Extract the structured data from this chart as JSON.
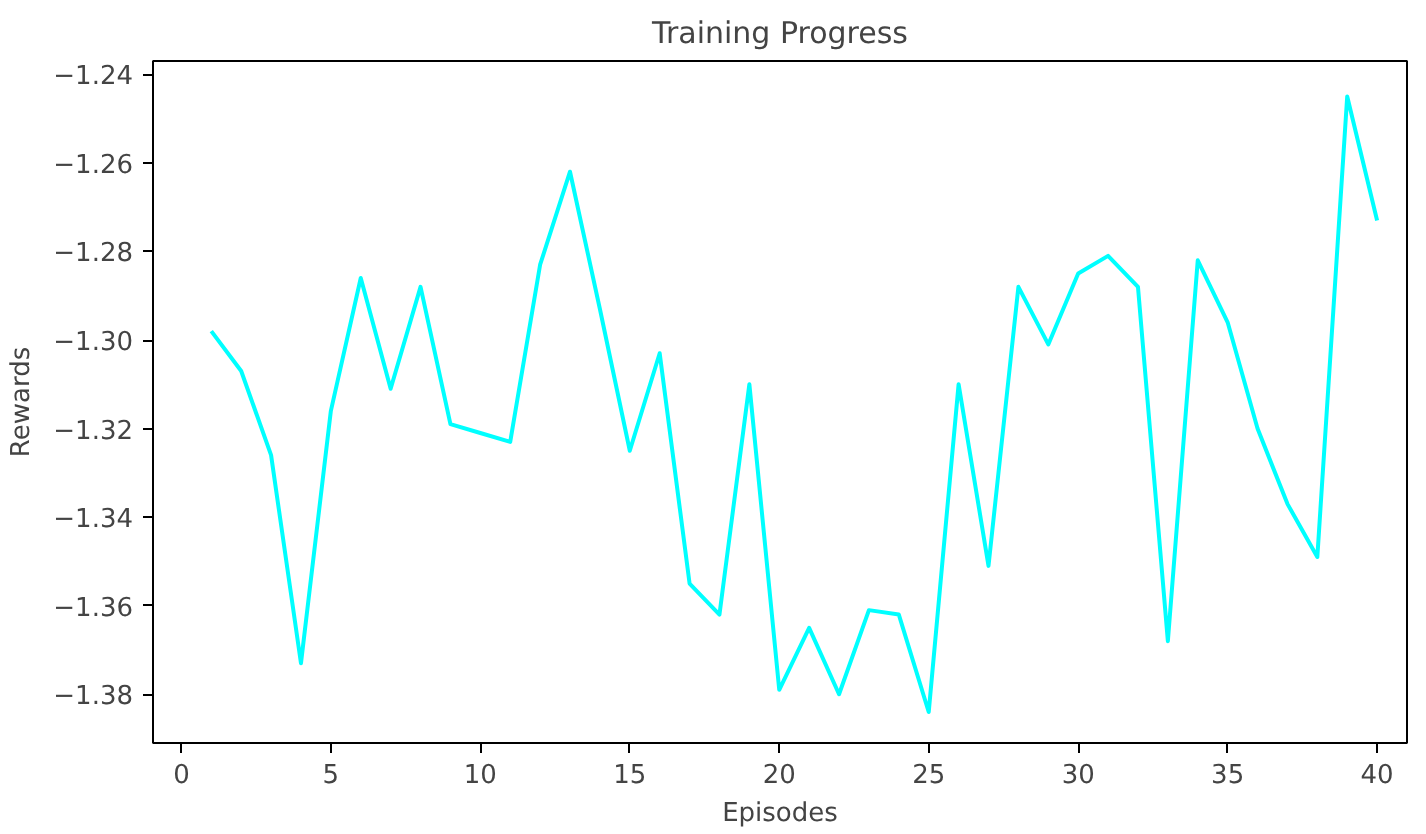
{
  "chart_data": {
    "type": "line",
    "title": "Training Progress",
    "xlabel": "Episodes",
    "ylabel": "Rewards",
    "x": [
      1,
      2,
      3,
      4,
      5,
      6,
      7,
      8,
      9,
      10,
      11,
      12,
      13,
      14,
      15,
      16,
      17,
      18,
      19,
      20,
      21,
      22,
      23,
      24,
      25,
      26,
      27,
      28,
      29,
      30,
      31,
      32,
      33,
      34,
      35,
      36,
      37,
      38,
      39,
      40
    ],
    "series": [
      {
        "color": "#00ffff",
        "values": [
          -1.298,
          -1.307,
          -1.326,
          -1.373,
          -1.316,
          -1.286,
          -1.311,
          -1.288,
          -1.319,
          -1.321,
          -1.323,
          -1.283,
          -1.262,
          -1.293,
          -1.325,
          -1.303,
          -1.355,
          -1.362,
          -1.31,
          -1.379,
          -1.365,
          -1.38,
          -1.361,
          -1.362,
          -1.384,
          -1.31,
          -1.351,
          -1.288,
          -1.301,
          -1.285,
          -1.281,
          -1.288,
          -1.368,
          -1.282,
          -1.296,
          -1.32,
          -1.337,
          -1.349,
          -1.245,
          -1.273
        ]
      }
    ],
    "xlim": [
      -0.95,
      41
    ],
    "ylim": [
      -1.391,
      -1.237
    ],
    "xticks": [
      0,
      5,
      10,
      15,
      20,
      25,
      30,
      35,
      40
    ],
    "yticks": [
      {
        "value": -1.38,
        "label": "−1.38"
      },
      {
        "value": -1.36,
        "label": "−1.36"
      },
      {
        "value": -1.34,
        "label": "−1.34"
      },
      {
        "value": -1.32,
        "label": "−1.32"
      },
      {
        "value": -1.3,
        "label": "−1.30"
      },
      {
        "value": -1.28,
        "label": "−1.28"
      },
      {
        "value": -1.26,
        "label": "−1.26"
      },
      {
        "value": -1.24,
        "label": "−1.24"
      }
    ],
    "grid": false,
    "marker": "none",
    "line_style": "solid"
  }
}
